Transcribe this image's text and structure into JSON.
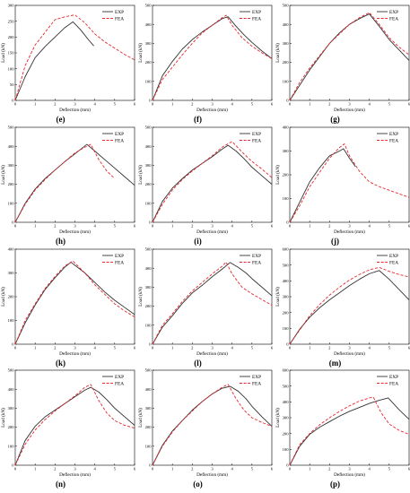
{
  "chart_data": [
    {
      "type": "line",
      "panel": "(e)",
      "xlabel": "Deflection (mm)",
      "ylabel": "Load (kN)",
      "xlim": [
        0,
        6
      ],
      "ylim": [
        0,
        300
      ],
      "xticks": [
        0,
        1,
        2,
        3,
        4,
        5,
        6
      ],
      "yticks": [
        0,
        50,
        100,
        150,
        200,
        250,
        300
      ],
      "legend": "top-right",
      "series": [
        {
          "name": "EXP",
          "color": "#333333",
          "x": [
            0,
            0.5,
            1,
            1.5,
            2,
            2.5,
            2.9,
            3.3,
            3.7,
            3.95
          ],
          "y": [
            0,
            75,
            135,
            170,
            200,
            230,
            248,
            222,
            190,
            172
          ]
        },
        {
          "name": "FEA",
          "color": "#e8262c",
          "x": [
            0,
            0.5,
            1,
            1.5,
            2,
            2.5,
            3,
            3.5,
            4,
            4.5,
            5,
            5.5,
            6
          ],
          "y": [
            0,
            110,
            175,
            215,
            255,
            264,
            270,
            245,
            210,
            185,
            165,
            145,
            128
          ]
        }
      ]
    },
    {
      "type": "line",
      "panel": "(f)",
      "xlabel": "Deflection (mm)",
      "ylabel": "Load (kN)",
      "xlim": [
        0,
        6
      ],
      "ylim": [
        0,
        500
      ],
      "xticks": [
        0,
        1,
        2,
        3,
        4,
        5,
        6
      ],
      "yticks": [
        0,
        100,
        200,
        300,
        400,
        500
      ],
      "legend": "top-right",
      "series": [
        {
          "name": "EXP",
          "color": "#333333",
          "x": [
            0,
            0.5,
            1,
            1.5,
            2,
            2.5,
            3,
            3.5,
            3.8,
            4.2,
            4.6,
            5,
            5.5,
            6
          ],
          "y": [
            0,
            130,
            205,
            270,
            320,
            360,
            395,
            430,
            440,
            390,
            345,
            305,
            260,
            220
          ]
        },
        {
          "name": "FEA",
          "color": "#e8262c",
          "x": [
            0,
            0.5,
            1,
            1.5,
            2,
            2.5,
            3,
            3.5,
            3.7,
            4,
            4.5,
            5,
            5.5,
            6
          ],
          "y": [
            0,
            110,
            175,
            240,
            300,
            355,
            395,
            435,
            448,
            395,
            330,
            285,
            250,
            220
          ]
        }
      ]
    },
    {
      "type": "line",
      "panel": "(g)",
      "xlabel": "Deflection (mm)",
      "ylabel": "Load (kN)",
      "xlim": [
        0,
        6
      ],
      "ylim": [
        0,
        500
      ],
      "xticks": [
        0,
        1,
        2,
        3,
        4,
        5,
        6
      ],
      "yticks": [
        0,
        100,
        200,
        300,
        400,
        500
      ],
      "legend": "top-right",
      "series": [
        {
          "name": "EXP",
          "color": "#333333",
          "x": [
            0,
            0.5,
            1,
            1.5,
            2,
            2.5,
            3,
            3.5,
            4,
            4.5,
            5,
            5.5,
            6
          ],
          "y": [
            0,
            80,
            160,
            230,
            300,
            355,
            400,
            430,
            455,
            390,
            320,
            265,
            210
          ]
        },
        {
          "name": "FEA",
          "color": "#e8262c",
          "x": [
            0,
            0.5,
            1,
            1.5,
            2,
            2.5,
            3,
            3.5,
            4,
            4.5,
            5,
            5.5,
            6
          ],
          "y": [
            0,
            95,
            170,
            235,
            300,
            350,
            400,
            435,
            462,
            400,
            330,
            280,
            240
          ]
        }
      ]
    },
    {
      "type": "line",
      "panel": "(h)",
      "xlabel": "Deflection (mm)",
      "ylabel": "Load (kN)",
      "xlim": [
        0,
        6
      ],
      "ylim": [
        0,
        500
      ],
      "xticks": [
        0,
        1,
        2,
        3,
        4,
        5,
        6
      ],
      "yticks": [
        0,
        100,
        200,
        300,
        400,
        500
      ],
      "legend": "top-right",
      "series": [
        {
          "name": "EXP",
          "color": "#333333",
          "x": [
            0,
            0.5,
            1,
            1.5,
            2,
            2.5,
            3,
            3.6,
            4,
            4.5,
            5,
            5.5,
            6
          ],
          "y": [
            0,
            100,
            175,
            230,
            275,
            320,
            360,
            410,
            375,
            330,
            285,
            240,
            195
          ]
        },
        {
          "name": "FEA",
          "color": "#e8262c",
          "x": [
            0,
            0.5,
            1,
            1.5,
            2,
            2.5,
            3,
            3.5,
            3.8,
            4.2,
            4.6,
            5
          ],
          "y": [
            0,
            95,
            170,
            225,
            275,
            320,
            365,
            395,
            410,
            330,
            270,
            230
          ]
        }
      ]
    },
    {
      "type": "line",
      "panel": "(i)",
      "xlabel": "Deflection (mm)",
      "ylabel": "Load (kN)",
      "xlim": [
        0,
        6
      ],
      "ylim": [
        0,
        500
      ],
      "xticks": [
        0,
        1,
        2,
        3,
        4,
        5,
        6
      ],
      "yticks": [
        0,
        100,
        200,
        300,
        400,
        500
      ],
      "legend": "top-right",
      "series": [
        {
          "name": "EXP",
          "color": "#333333",
          "x": [
            0,
            0.5,
            1,
            1.5,
            2,
            2.5,
            3,
            3.5,
            3.8,
            4.2,
            4.6,
            5,
            5.5,
            6
          ],
          "y": [
            0,
            110,
            180,
            230,
            275,
            310,
            345,
            385,
            405,
            375,
            335,
            290,
            245,
            200
          ]
        },
        {
          "name": "FEA",
          "color": "#e8262c",
          "x": [
            0,
            0.5,
            1,
            1.5,
            2,
            2.5,
            3,
            3.5,
            4,
            4.5,
            5,
            5.5,
            6
          ],
          "y": [
            0,
            95,
            170,
            225,
            270,
            310,
            350,
            395,
            425,
            370,
            320,
            280,
            235
          ]
        }
      ]
    },
    {
      "type": "line",
      "panel": "(j)",
      "xlabel": "Deflection (mm)",
      "ylabel": "Load (kN)",
      "xlim": [
        0,
        6
      ],
      "ylim": [
        0,
        400
      ],
      "xticks": [
        0,
        1,
        2,
        3,
        4,
        5,
        6
      ],
      "yticks": [
        0,
        100,
        200,
        300,
        400
      ],
      "legend": "top-right",
      "series": [
        {
          "name": "EXP",
          "color": "#333333",
          "x": [
            0,
            0.5,
            1,
            1.5,
            2,
            2.5,
            2.7,
            3,
            3.3
          ],
          "y": [
            0,
            85,
            170,
            230,
            280,
            300,
            310,
            270,
            235
          ]
        },
        {
          "name": "FEA",
          "color": "#e8262c",
          "x": [
            0,
            0.5,
            1,
            1.5,
            2,
            2.5,
            2.75,
            3,
            3.5,
            4,
            4.5,
            5,
            5.5,
            6
          ],
          "y": [
            0,
            70,
            150,
            210,
            270,
            315,
            330,
            280,
            215,
            170,
            150,
            135,
            120,
            105
          ]
        }
      ]
    },
    {
      "type": "line",
      "panel": "(k)",
      "xlabel": "Deflection (mm)",
      "ylabel": "Load (kN)",
      "xlim": [
        0,
        6
      ],
      "ylim": [
        0,
        400
      ],
      "xticks": [
        0,
        1,
        2,
        3,
        4,
        5,
        6
      ],
      "yticks": [
        0,
        100,
        200,
        300,
        400
      ],
      "legend": "top-right",
      "series": [
        {
          "name": "EXP",
          "color": "#333333",
          "x": [
            0,
            0.5,
            1,
            1.5,
            2,
            2.5,
            2.8,
            3.5,
            4,
            4.5,
            5,
            5.5,
            6
          ],
          "y": [
            0,
            90,
            165,
            230,
            280,
            325,
            345,
            300,
            260,
            220,
            185,
            155,
            125
          ]
        },
        {
          "name": "FEA",
          "color": "#e8262c",
          "x": [
            0,
            0.5,
            1,
            1.5,
            2,
            2.5,
            2.9,
            3.5,
            4,
            4.5,
            5,
            5.5,
            6
          ],
          "y": [
            0,
            100,
            170,
            235,
            285,
            330,
            350,
            300,
            250,
            210,
            170,
            140,
            115
          ]
        }
      ]
    },
    {
      "type": "line",
      "panel": "(l)",
      "xlabel": "Deflection (mm)",
      "ylabel": "Load (kN)",
      "xlim": [
        0,
        6
      ],
      "ylim": [
        0,
        500
      ],
      "xticks": [
        0,
        1,
        2,
        3,
        4,
        5,
        6
      ],
      "yticks": [
        0,
        100,
        200,
        300,
        400,
        500
      ],
      "legend": "top-right",
      "series": [
        {
          "name": "EXP",
          "color": "#333333",
          "x": [
            0,
            0.5,
            1,
            1.5,
            2,
            2.5,
            3,
            3.5,
            3.9,
            4.3,
            4.7,
            5,
            5.5,
            6
          ],
          "y": [
            0,
            90,
            150,
            215,
            270,
            310,
            355,
            395,
            430,
            405,
            375,
            345,
            300,
            255
          ]
        },
        {
          "name": "FEA",
          "color": "#e8262c",
          "x": [
            0,
            0.5,
            1,
            1.5,
            2,
            2.5,
            3,
            3.5,
            3.7,
            4,
            4.5,
            5,
            5.5,
            6
          ],
          "y": [
            0,
            100,
            160,
            225,
            280,
            325,
            370,
            410,
            432,
            370,
            300,
            265,
            235,
            205
          ]
        }
      ]
    },
    {
      "type": "line",
      "panel": "(m)",
      "xlabel": "Deflection (mm)",
      "ylabel": "Load (kN)",
      "xlim": [
        0,
        6
      ],
      "ylim": [
        0,
        600
      ],
      "xticks": [
        0,
        1,
        2,
        3,
        4,
        5,
        6
      ],
      "yticks": [
        0,
        100,
        200,
        300,
        400,
        500,
        600
      ],
      "legend": "top-right",
      "series": [
        {
          "name": "EXP",
          "color": "#333333",
          "x": [
            0,
            0.5,
            1,
            1.5,
            2,
            2.5,
            3,
            3.5,
            4,
            4.5,
            5,
            5.5,
            6
          ],
          "y": [
            0,
            95,
            170,
            230,
            280,
            325,
            370,
            410,
            445,
            465,
            410,
            345,
            280
          ]
        },
        {
          "name": "FEA",
          "color": "#e8262c",
          "x": [
            0,
            0.5,
            1,
            1.5,
            2,
            2.5,
            3,
            3.5,
            4,
            4.5,
            5,
            5.5,
            6
          ],
          "y": [
            0,
            90,
            180,
            250,
            310,
            360,
            405,
            440,
            470,
            485,
            460,
            440,
            425
          ]
        }
      ]
    },
    {
      "type": "line",
      "panel": "(n)",
      "xlabel": "Deflection (mm)",
      "ylabel": "Load (kN)",
      "xlim": [
        0,
        6
      ],
      "ylim": [
        0,
        500
      ],
      "xticks": [
        0,
        1,
        2,
        3,
        4,
        5,
        6
      ],
      "yticks": [
        0,
        100,
        200,
        300,
        400,
        500
      ],
      "legend": "top-right",
      "series": [
        {
          "name": "EXP",
          "color": "#333333",
          "x": [
            0,
            0.5,
            1,
            1.5,
            2,
            2.5,
            3,
            3.5,
            3.8,
            4.2,
            4.6,
            5,
            5.5,
            6
          ],
          "y": [
            0,
            130,
            205,
            255,
            290,
            325,
            360,
            395,
            410,
            385,
            345,
            300,
            255,
            210
          ]
        },
        {
          "name": "FEA",
          "color": "#e8262c",
          "x": [
            0,
            0.5,
            1,
            1.5,
            2,
            2.5,
            3,
            3.5,
            3.8,
            4.2,
            4.6,
            5,
            5.5,
            6
          ],
          "y": [
            0,
            110,
            185,
            240,
            285,
            325,
            365,
            410,
            425,
            340,
            275,
            235,
            210,
            195
          ]
        }
      ]
    },
    {
      "type": "line",
      "panel": "(o)",
      "xlabel": "Deflection (mm)",
      "ylabel": "Load (kN)",
      "xlim": [
        0,
        6
      ],
      "ylim": [
        0,
        500
      ],
      "xticks": [
        0,
        1,
        2,
        3,
        4,
        5,
        6
      ],
      "yticks": [
        0,
        100,
        200,
        300,
        400,
        500
      ],
      "legend": "top-right",
      "series": [
        {
          "name": "EXP",
          "color": "#333333",
          "x": [
            0,
            0.5,
            1,
            1.5,
            2,
            2.5,
            3,
            3.5,
            3.9,
            4.3,
            4.7,
            5,
            5.5,
            6
          ],
          "y": [
            0,
            105,
            180,
            235,
            290,
            335,
            375,
            405,
            415,
            390,
            350,
            310,
            255,
            205
          ]
        },
        {
          "name": "FEA",
          "color": "#e8262c",
          "x": [
            0,
            0.5,
            1,
            1.5,
            2,
            2.5,
            3,
            3.5,
            3.8,
            4.2,
            4.6,
            5,
            5.5,
            6
          ],
          "y": [
            0,
            100,
            175,
            235,
            285,
            335,
            375,
            410,
            425,
            350,
            290,
            250,
            225,
            205
          ]
        }
      ]
    },
    {
      "type": "line",
      "panel": "(p)",
      "xlabel": "Deflection (mm)",
      "ylabel": "Load (kN)",
      "xlim": [
        0,
        6
      ],
      "ylim": [
        0,
        600
      ],
      "xticks": [
        0,
        1,
        2,
        3,
        4,
        5,
        6
      ],
      "yticks": [
        0,
        100,
        200,
        300,
        400,
        500,
        600
      ],
      "legend": "top-right",
      "series": [
        {
          "name": "EXP",
          "color": "#333333",
          "x": [
            0,
            0.5,
            1,
            1.5,
            2,
            2.5,
            3,
            3.5,
            4,
            4.5,
            4.95,
            5.5,
            6
          ],
          "y": [
            0,
            120,
            195,
            240,
            275,
            310,
            340,
            365,
            390,
            410,
            425,
            350,
            290
          ]
        },
        {
          "name": "FEA",
          "color": "#e8262c",
          "x": [
            0,
            0.5,
            1,
            1.5,
            2,
            2.5,
            3,
            3.5,
            4,
            4.2,
            4.6,
            5,
            5.5,
            6
          ],
          "y": [
            0,
            130,
            200,
            255,
            300,
            340,
            375,
            405,
            425,
            430,
            330,
            260,
            220,
            195
          ]
        }
      ]
    }
  ]
}
